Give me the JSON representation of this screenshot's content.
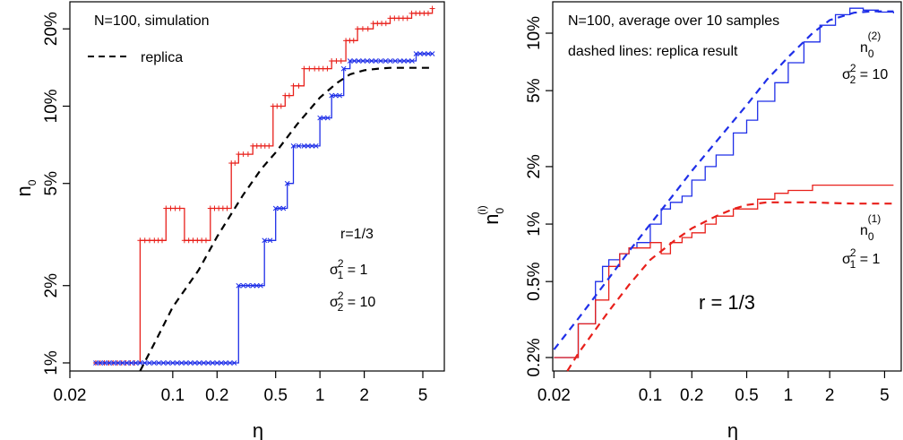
{
  "chart_data": [
    {
      "type": "line",
      "xlabel": "η",
      "ylabel": "n",
      "ylabel_sub": "0",
      "xscale": "log",
      "yscale": "log",
      "xlim": [
        0.02,
        7.0
      ],
      "ylim": [
        0.0093,
        0.255
      ],
      "xticks": [
        0.02,
        0.1,
        0.2,
        0.5,
        1,
        2,
        5
      ],
      "xtick_labels": [
        "0.02",
        "0.1",
        "0.2",
        "0.5",
        "1",
        "2",
        "5"
      ],
      "yticks": [
        0.01,
        0.02,
        0.05,
        0.1,
        0.2
      ],
      "ytick_labels": [
        "1%",
        "2%",
        "5%",
        "10%",
        "20%"
      ],
      "legend": {
        "placement": "top-left",
        "entries": [
          "N=100, simulation",
          "replica"
        ]
      },
      "annotations": {
        "r": "r=1/3",
        "sigma1": {
          "base": "σ",
          "sub": "1",
          "sup": "2",
          "rest": " = 1"
        },
        "sigma2": {
          "base": "σ",
          "sub": "2",
          "sup": "2",
          "rest": " = 10"
        }
      },
      "series": [
        {
          "color": "#e8201b",
          "style": "step-markers",
          "marker": "+",
          "x": [
            0.03,
            0.045,
            0.055,
            0.06,
            0.075,
            0.09,
            0.12,
            0.18,
            0.25,
            0.28,
            0.35,
            0.48,
            0.58,
            0.66,
            0.78,
            0.92,
            1.2,
            1.5,
            1.8,
            2.3,
            3.0,
            4.2,
            5.8
          ],
          "y": [
            0.01,
            0.01,
            0.01,
            0.03,
            0.03,
            0.04,
            0.03,
            0.04,
            0.06,
            0.065,
            0.07,
            0.1,
            0.11,
            0.12,
            0.14,
            0.14,
            0.15,
            0.18,
            0.2,
            0.21,
            0.22,
            0.23,
            0.24
          ]
        },
        {
          "color": "#1f2fe8",
          "style": "step-markers",
          "marker": "x",
          "x": [
            0.03,
            0.06,
            0.1,
            0.2,
            0.28,
            0.35,
            0.42,
            0.5,
            0.6,
            0.66,
            0.78,
            1.0,
            1.2,
            1.45,
            1.6,
            2.4,
            3.5,
            4.5,
            5.8
          ],
          "y": [
            0.01,
            0.01,
            0.01,
            0.01,
            0.02,
            0.02,
            0.03,
            0.04,
            0.05,
            0.07,
            0.07,
            0.09,
            0.11,
            0.14,
            0.15,
            0.15,
            0.15,
            0.16,
            0.16
          ]
        },
        {
          "name": "replica",
          "color": "#000000",
          "style": "dashed",
          "x": [
            0.06,
            0.08,
            0.1,
            0.15,
            0.2,
            0.3,
            0.4,
            0.5,
            0.7,
            1.0,
            1.3,
            1.6,
            2.0,
            2.5,
            3.0,
            4.0,
            5.8
          ],
          "y": [
            0.0093,
            0.0128,
            0.0165,
            0.023,
            0.031,
            0.045,
            0.057,
            0.066,
            0.085,
            0.108,
            0.123,
            0.133,
            0.138,
            0.14,
            0.141,
            0.141,
            0.141
          ]
        }
      ]
    },
    {
      "type": "line",
      "xlabel": "η",
      "ylabel": "n",
      "ylabel_sub": "0",
      "ylabel_sup": "(i)",
      "xscale": "log",
      "yscale": "log",
      "xlim": [
        0.0196,
        6.6
      ],
      "ylim": [
        0.0017,
        0.146
      ],
      "xticks": [
        0.02,
        0.1,
        0.2,
        0.5,
        1,
        2,
        5
      ],
      "xtick_labels": [
        "0.02",
        "0.1",
        "0.2",
        "0.5",
        "1",
        "2",
        "5"
      ],
      "yticks": [
        0.002,
        0.005,
        0.01,
        0.02,
        0.05,
        0.1
      ],
      "ytick_labels": [
        "0.2%",
        "0.5%",
        "1%",
        "2%",
        "5%",
        "10%"
      ],
      "legend": {
        "placement": "top-left",
        "entries": [
          "N=100, average over 10 samples",
          "dashed lines: replica result"
        ]
      },
      "annotations": {
        "r": "r = 1/3",
        "n2": {
          "base": "n",
          "sub": "0",
          "sup": "(2)"
        },
        "n1": {
          "base": "n",
          "sub": "0",
          "sup": "(1)"
        },
        "sigma2": {
          "base": "σ",
          "sub": "2",
          "sup": "2",
          "rest": " = 10"
        },
        "sigma1": {
          "base": "σ",
          "sub": "1",
          "sup": "2",
          "rest": " = 1"
        }
      },
      "series": [
        {
          "color": "#1f2fe8",
          "style": "solid",
          "x": [
            0.02,
            0.025,
            0.03,
            0.036,
            0.04,
            0.045,
            0.05,
            0.06,
            0.07,
            0.08,
            0.1,
            0.12,
            0.14,
            0.17,
            0.2,
            0.25,
            0.3,
            0.4,
            0.5,
            0.6,
            0.8,
            1.0,
            1.3,
            1.7,
            2.2,
            2.8,
            3.5,
            4.5,
            5.8
          ],
          "y": [
            0.002,
            0.002,
            0.003,
            0.003,
            0.005,
            0.006,
            0.0065,
            0.007,
            0.0075,
            0.008,
            0.01,
            0.012,
            0.013,
            0.014,
            0.017,
            0.02,
            0.023,
            0.03,
            0.035,
            0.044,
            0.055,
            0.07,
            0.09,
            0.11,
            0.125,
            0.135,
            0.132,
            0.129,
            0.127
          ]
        },
        {
          "color": "#e8201b",
          "style": "solid",
          "x": [
            0.02,
            0.025,
            0.03,
            0.036,
            0.04,
            0.05,
            0.06,
            0.07,
            0.085,
            0.1,
            0.12,
            0.14,
            0.17,
            0.2,
            0.25,
            0.3,
            0.4,
            0.5,
            0.6,
            0.8,
            1.0,
            1.5,
            2.0,
            3.0,
            4.0,
            5.8
          ],
          "y": [
            0.002,
            0.002,
            0.003,
            0.003,
            0.004,
            0.006,
            0.007,
            0.0075,
            0.0075,
            0.008,
            0.007,
            0.008,
            0.0085,
            0.009,
            0.01,
            0.011,
            0.012,
            0.012,
            0.0135,
            0.0145,
            0.015,
            0.016,
            0.016,
            0.016,
            0.016,
            0.016
          ]
        },
        {
          "color": "#1f2fe8",
          "style": "dashed",
          "x": [
            0.02,
            0.03,
            0.05,
            0.07,
            0.1,
            0.15,
            0.2,
            0.3,
            0.5,
            0.7,
            1.0,
            1.5,
            2.0,
            3.0,
            4.0,
            5.8
          ],
          "y": [
            0.0022,
            0.0032,
            0.0052,
            0.0072,
            0.01,
            0.0145,
            0.019,
            0.027,
            0.042,
            0.057,
            0.075,
            0.1,
            0.117,
            0.128,
            0.13,
            0.13
          ]
        },
        {
          "color": "#e8201b",
          "style": "dashed",
          "x": [
            0.025,
            0.03,
            0.04,
            0.05,
            0.07,
            0.1,
            0.15,
            0.2,
            0.3,
            0.4,
            0.5,
            0.7,
            1.0,
            1.5,
            2.0,
            3.0,
            5.8
          ],
          "y": [
            0.0017,
            0.0021,
            0.0028,
            0.0035,
            0.0048,
            0.0065,
            0.0082,
            0.0095,
            0.011,
            0.012,
            0.0126,
            0.013,
            0.013,
            0.013,
            0.0129,
            0.0128,
            0.0128
          ]
        }
      ]
    }
  ]
}
